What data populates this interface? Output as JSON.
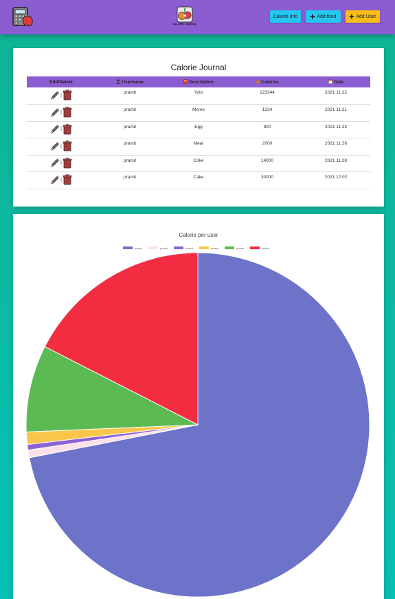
{
  "header": {
    "logo_text": "CALORIE JOURNAL",
    "buttons": [
      {
        "label": "Calorie Info",
        "color": "#25c6f0"
      },
      {
        "label": "Add food",
        "color": "#25c6f0"
      },
      {
        "label": "Add User",
        "color": "#f8bd18"
      }
    ]
  },
  "journal": {
    "title": "Calorie Journal",
    "columns": [
      "Edit/Delete",
      "Username",
      "Description",
      "Calories",
      "Date"
    ],
    "rows": [
      {
        "username": "pramit",
        "description": "Yolo",
        "calories": "123344",
        "date": "2021 11 22"
      },
      {
        "username": "pramit",
        "description": "Momo",
        "calories": "1234",
        "date": "2021 11 21"
      },
      {
        "username": "pramit",
        "description": "Egg",
        "calories": "900",
        "date": "2021 11 23"
      },
      {
        "username": "pramit",
        "description": "Meat",
        "calories": "2000",
        "date": "2021 11 26"
      },
      {
        "username": "pramit",
        "description": "Coke",
        "calories": "14000",
        "date": "2021 11 28"
      },
      {
        "username": "pramit",
        "description": "Cake",
        "calories": "30000",
        "date": "2021 12 02"
      }
    ]
  },
  "chart_data": {
    "type": "pie",
    "title": "Calorie per user",
    "legend_placement": "top",
    "series": [
      {
        "name": "pramit",
        "value": 123344,
        "color": "#6c73c8"
      },
      {
        "name": "pramit",
        "value": 1234,
        "color": "#fce0e8"
      },
      {
        "name": "pramit",
        "value": 900,
        "color": "#8e63d4"
      },
      {
        "name": "pramit",
        "value": 2000,
        "color": "#f9c64b"
      },
      {
        "name": "pramit",
        "value": 14000,
        "color": "#5cba52"
      },
      {
        "name": "pramit",
        "value": 30000,
        "color": "#f22d42"
      }
    ]
  }
}
